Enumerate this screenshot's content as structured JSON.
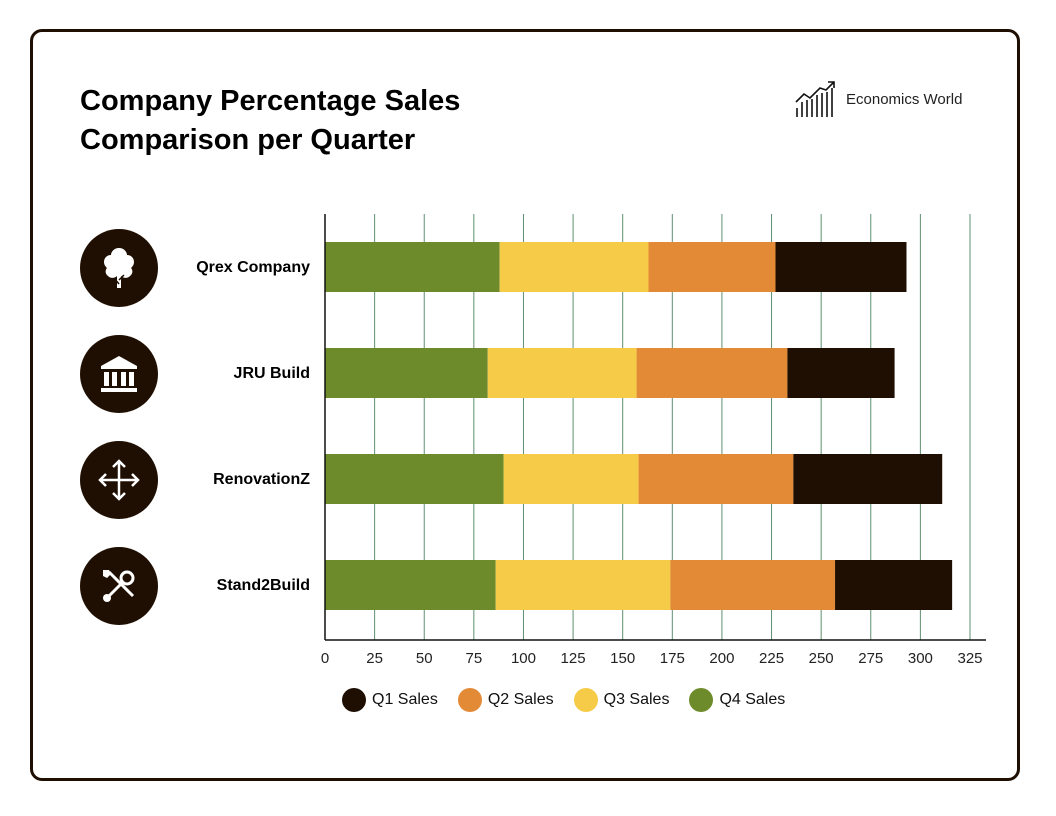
{
  "title_line1": "Company Percentage Sales",
  "title_line2": "Comparison per Quarter",
  "brand": {
    "name": "Economics World",
    "icon": "rising-bar-chart-icon"
  },
  "chart_data": {
    "type": "bar",
    "orientation": "horizontal",
    "stacked": true,
    "title": "Company Percentage Sales Comparison per Quarter",
    "categories": [
      "Qrex Company",
      "JRU Build",
      "RenovationZ",
      "Stand2Build"
    ],
    "category_icons": [
      "tree-icon",
      "bank-building-icon",
      "move-arrows-icon",
      "tools-icon"
    ],
    "series": [
      {
        "name": "Q4 Sales",
        "color": "#6e8b2c",
        "values": [
          88,
          82,
          90,
          86
        ]
      },
      {
        "name": "Q3 Sales",
        "color": "#f5cb48",
        "values": [
          75,
          75,
          68,
          88
        ]
      },
      {
        "name": "Q2 Sales",
        "color": "#e28a35",
        "values": [
          64,
          76,
          78,
          83
        ]
      },
      {
        "name": "Q1 Sales",
        "color": "#1f0f02",
        "values": [
          66,
          54,
          75,
          59
        ]
      }
    ],
    "xlim": [
      0,
      325
    ],
    "xticks": [
      "0",
      "25",
      "50",
      "75",
      "100",
      "125",
      "150",
      "175",
      "200",
      "225",
      "250",
      "275",
      "300",
      "325"
    ],
    "grid": true,
    "legend_order": [
      "Q1 Sales",
      "Q2 Sales",
      "Q3 Sales",
      "Q4 Sales"
    ],
    "legend_placement": "bottom"
  }
}
